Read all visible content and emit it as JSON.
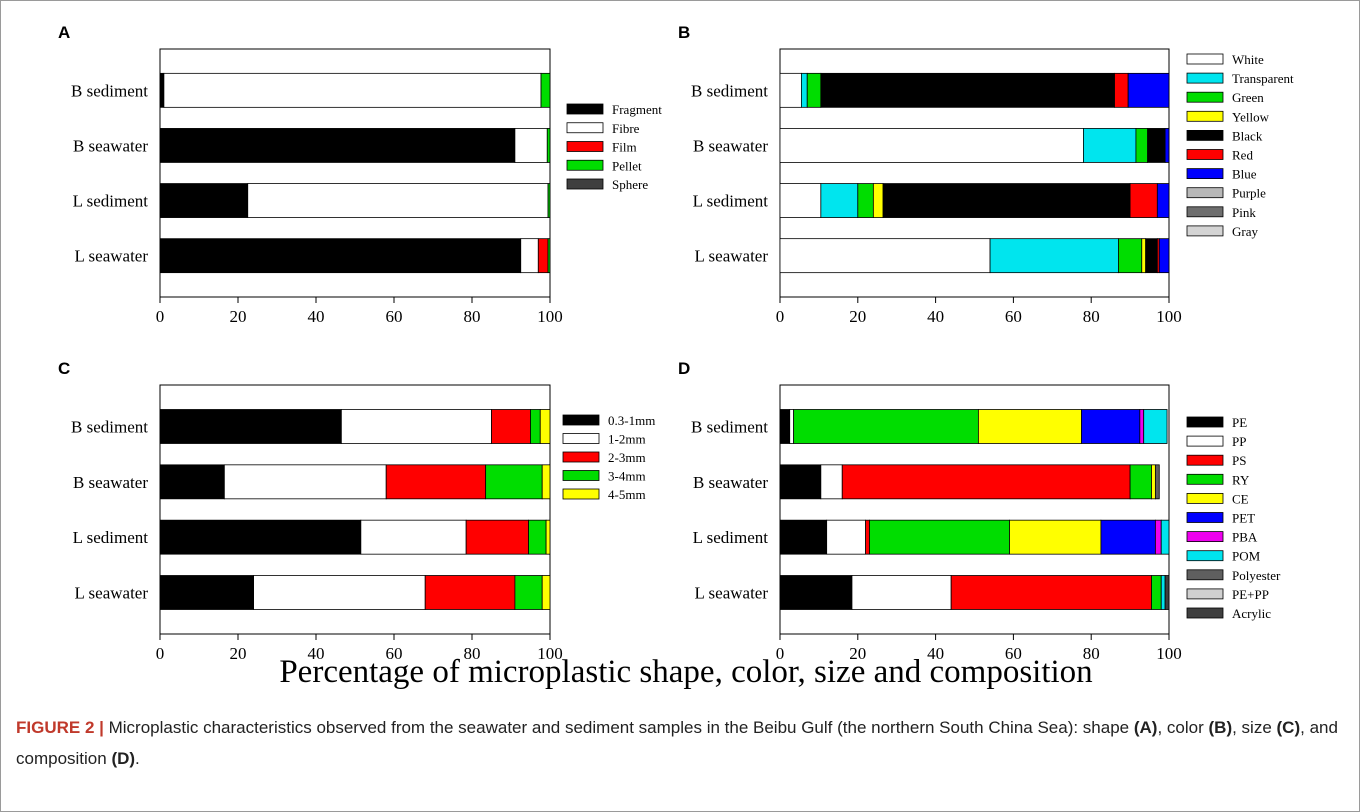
{
  "figure": {
    "main_label": "Percentage of microplastic shape, color, size and composition",
    "caption": {
      "label": "FIGURE 2 |",
      "t1": " Microplastic characteristics observed from the seawater and sediment samples in the Beibu Gulf (the northern South China Sea): shape ",
      "r1": "(A)",
      "t2": ", color ",
      "r2": "(B)",
      "t3": ", size ",
      "r3": "(C)",
      "t4": ", and composition ",
      "r4": "(D)",
      "t5": "."
    }
  },
  "chart_data": [
    {
      "type": "bar",
      "orientation": "horizontal",
      "stacked": true,
      "panel": "A",
      "categories": [
        "B sediment",
        "B seawater",
        "L sediment",
        "L seawater"
      ],
      "xlim": [
        0,
        100
      ],
      "xticks": [
        "0",
        "20",
        "40",
        "60",
        "80",
        "100"
      ],
      "legend_position": "right",
      "series": [
        {
          "name": "Fragment",
          "color": "#000000",
          "values": [
            1,
            91,
            22.5,
            92.5
          ]
        },
        {
          "name": "Fibre",
          "color": "#ffffff",
          "values": [
            96.7,
            8.3,
            77,
            4.5
          ]
        },
        {
          "name": "Film",
          "color": "#ff0000",
          "values": [
            0,
            0,
            0,
            2.5
          ]
        },
        {
          "name": "Pellet",
          "color": "#00dd00",
          "values": [
            2.3,
            0.7,
            0.5,
            0.5
          ]
        },
        {
          "name": "Sphere",
          "color": "#3f3f3f",
          "values": [
            0,
            0,
            0,
            0
          ]
        }
      ]
    },
    {
      "type": "bar",
      "orientation": "horizontal",
      "stacked": true,
      "panel": "B",
      "categories": [
        "B sediment",
        "B seawater",
        "L sediment",
        "L seawater"
      ],
      "xlim": [
        0,
        100
      ],
      "xticks": [
        "0",
        "20",
        "40",
        "60",
        "80",
        "100"
      ],
      "legend_position": "right",
      "series": [
        {
          "name": "White",
          "color": "#ffffff",
          "values": [
            5.5,
            78,
            10.5,
            54
          ]
        },
        {
          "name": "Transparent",
          "color": "#00e5ee",
          "values": [
            1.5,
            13.5,
            9.5,
            33
          ]
        },
        {
          "name": "Green",
          "color": "#00dd00",
          "values": [
            3.5,
            3,
            4,
            6
          ]
        },
        {
          "name": "Yellow",
          "color": "#ffff00",
          "values": [
            0,
            0,
            2.5,
            1
          ]
        },
        {
          "name": "Black",
          "color": "#000000",
          "values": [
            75.5,
            4.5,
            63.5,
            3
          ]
        },
        {
          "name": "Red",
          "color": "#ff0000",
          "values": [
            3.5,
            0,
            7,
            0.5
          ]
        },
        {
          "name": "Blue",
          "color": "#0000ff",
          "values": [
            10.5,
            1,
            3,
            2.5
          ]
        },
        {
          "name": "Purple",
          "color": "#b8b8b8",
          "values": [
            0,
            0,
            0,
            0
          ]
        },
        {
          "name": "Pink",
          "color": "#6e6e6e",
          "values": [
            0,
            0,
            0,
            0
          ]
        },
        {
          "name": "Gray",
          "color": "#d4d4d4",
          "values": [
            0,
            0,
            0,
            0
          ]
        }
      ]
    },
    {
      "type": "bar",
      "orientation": "horizontal",
      "stacked": true,
      "panel": "C",
      "categories": [
        "B sediment",
        "B seawater",
        "L sediment",
        "L seawater"
      ],
      "xlim": [
        0,
        100
      ],
      "xticks": [
        "0",
        "20",
        "40",
        "60",
        "80",
        "100"
      ],
      "legend_position": "right",
      "series": [
        {
          "name": "0.3-1mm",
          "color": "#000000",
          "values": [
            46.5,
            16.5,
            51.5,
            24
          ]
        },
        {
          "name": "1-2mm",
          "color": "#ffffff",
          "values": [
            38.5,
            41.5,
            27,
            44
          ]
        },
        {
          "name": "2-3mm",
          "color": "#ff0000",
          "values": [
            10,
            25.5,
            16,
            23
          ]
        },
        {
          "name": "3-4mm",
          "color": "#00dd00",
          "values": [
            2.5,
            14.5,
            4.5,
            7
          ]
        },
        {
          "name": "4-5mm",
          "color": "#ffff00",
          "values": [
            2.5,
            2,
            1,
            2
          ]
        }
      ]
    },
    {
      "type": "bar",
      "orientation": "horizontal",
      "stacked": true,
      "panel": "D",
      "categories": [
        "B sediment",
        "B seawater",
        "L sediment",
        "L seawater"
      ],
      "xlim": [
        0,
        100
      ],
      "xticks": [
        "0",
        "20",
        "40",
        "60",
        "80",
        "100"
      ],
      "legend_position": "right",
      "series": [
        {
          "name": "PE",
          "color": "#000000",
          "values": [
            2.5,
            10.5,
            12,
            18.5
          ]
        },
        {
          "name": "PP",
          "color": "#ffffff",
          "values": [
            1,
            5.5,
            10,
            25.5
          ]
        },
        {
          "name": "PS",
          "color": "#ff0000",
          "values": [
            0,
            74,
            1,
            51.5
          ]
        },
        {
          "name": "RY",
          "color": "#00dd00",
          "values": [
            47.5,
            5.5,
            36,
            2.5
          ]
        },
        {
          "name": "CE",
          "color": "#ffff00",
          "values": [
            26.5,
            1,
            23.5,
            0
          ]
        },
        {
          "name": "PET",
          "color": "#0000ff",
          "values": [
            15,
            0,
            14,
            0
          ]
        },
        {
          "name": "PBA",
          "color": "#ee00ee",
          "values": [
            1,
            0,
            1.5,
            0
          ]
        },
        {
          "name": "POM",
          "color": "#00e5ee",
          "values": [
            6,
            0,
            2,
            1
          ]
        },
        {
          "name": "Polyester",
          "color": "#5f5f5f",
          "values": [
            0,
            1,
            0,
            0
          ]
        },
        {
          "name": "PE+PP",
          "color": "#d0d0d0",
          "values": [
            0,
            0,
            0,
            0
          ]
        },
        {
          "name": "Acrylic",
          "color": "#3f3f3f",
          "values": [
            0,
            0,
            0,
            1
          ]
        }
      ]
    }
  ]
}
